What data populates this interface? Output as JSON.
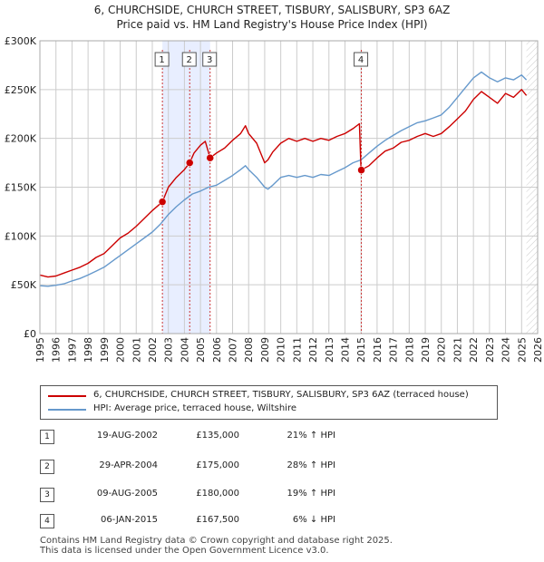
{
  "title_line1": "6, CHURCHSIDE, CHURCH STREET, TISBURY, SALISBURY, SP3 6AZ",
  "title_line2": "Price paid vs. HM Land Registry's House Price Index (HPI)",
  "colors": {
    "property": "#cc0000",
    "hpi": "#6699cc",
    "shade": "#e8eeff",
    "marker_line": "#cc3333",
    "grid": "#cccccc"
  },
  "chart_data": {
    "type": "line",
    "title": "Price paid vs. HM Land Registry's House Price Index (HPI)",
    "xlabel": "",
    "ylabel": "",
    "xlim": [
      1995,
      2026
    ],
    "ylim": [
      0,
      300000
    ],
    "x_ticks": [
      "1995",
      "1996",
      "1997",
      "1998",
      "1999",
      "2000",
      "2001",
      "2002",
      "2003",
      "2004",
      "2005",
      "2006",
      "2007",
      "2008",
      "2009",
      "2010",
      "2011",
      "2012",
      "2013",
      "2014",
      "2015",
      "2016",
      "2017",
      "2018",
      "2019",
      "2020",
      "2021",
      "2022",
      "2023",
      "2024",
      "2025",
      "2026"
    ],
    "y_ticks": [
      {
        "value": 0,
        "label": "£0"
      },
      {
        "value": 50000,
        "label": "£50K"
      },
      {
        "value": 100000,
        "label": "£100K"
      },
      {
        "value": 150000,
        "label": "£150K"
      },
      {
        "value": 200000,
        "label": "£200K"
      },
      {
        "value": 250000,
        "label": "£250K"
      },
      {
        "value": 300000,
        "label": "£300K"
      }
    ],
    "shaded_ranges": [
      [
        2002.63,
        2005.6
      ]
    ],
    "future_hatch_from": 2025.3,
    "series": [
      {
        "name": "6, CHURCHSIDE, CHURCH STREET, TISBURY, SALISBURY, SP3 6AZ (terraced house)",
        "color": "#cc0000",
        "x": [
          1995.0,
          1995.5,
          1996.0,
          1996.5,
          1997.0,
          1997.5,
          1998.0,
          1998.5,
          1999.0,
          1999.5,
          2000.0,
          2000.5,
          2001.0,
          2001.5,
          2002.0,
          2002.63,
          2003.0,
          2003.5,
          2004.0,
          2004.33,
          2004.6,
          2005.0,
          2005.3,
          2005.6,
          2006.0,
          2006.5,
          2007.0,
          2007.5,
          2007.8,
          2008.0,
          2008.5,
          2009.0,
          2009.2,
          2009.5,
          2010.0,
          2010.5,
          2011.0,
          2011.5,
          2012.0,
          2012.5,
          2013.0,
          2013.5,
          2014.0,
          2014.5,
          2014.9,
          2015.0,
          2015.5,
          2016.0,
          2016.5,
          2017.0,
          2017.5,
          2018.0,
          2018.5,
          2019.0,
          2019.5,
          2020.0,
          2020.5,
          2021.0,
          2021.5,
          2022.0,
          2022.5,
          2023.0,
          2023.5,
          2024.0,
          2024.5,
          2025.0,
          2025.3
        ],
        "y": [
          60000,
          58000,
          59000,
          62000,
          65000,
          68000,
          72000,
          78000,
          82000,
          90000,
          98000,
          103000,
          110000,
          118000,
          126000,
          135000,
          150000,
          160000,
          168000,
          175000,
          185000,
          193000,
          197000,
          180000,
          185000,
          190000,
          198000,
          205000,
          213000,
          205000,
          195000,
          175000,
          178000,
          186000,
          195000,
          200000,
          197000,
          200000,
          197000,
          200000,
          198000,
          202000,
          205000,
          210000,
          215000,
          167500,
          172000,
          180000,
          187000,
          190000,
          196000,
          198000,
          202000,
          205000,
          202000,
          205000,
          212000,
          220000,
          228000,
          240000,
          248000,
          242000,
          236000,
          246000,
          242000,
          250000,
          244000
        ]
      },
      {
        "name": "HPI: Average price, terraced house, Wiltshire",
        "color": "#6699cc",
        "x": [
          1995.0,
          1995.5,
          1996.0,
          1996.5,
          1997.0,
          1997.5,
          1998.0,
          1998.5,
          1999.0,
          1999.5,
          2000.0,
          2000.5,
          2001.0,
          2001.5,
          2002.0,
          2002.5,
          2003.0,
          2003.5,
          2004.0,
          2004.5,
          2005.0,
          2005.5,
          2006.0,
          2006.5,
          2007.0,
          2007.5,
          2007.8,
          2008.0,
          2008.5,
          2009.0,
          2009.2,
          2009.5,
          2010.0,
          2010.5,
          2011.0,
          2011.5,
          2012.0,
          2012.5,
          2013.0,
          2013.5,
          2014.0,
          2014.5,
          2015.0,
          2015.5,
          2016.0,
          2016.5,
          2017.0,
          2017.5,
          2018.0,
          2018.5,
          2019.0,
          2019.5,
          2020.0,
          2020.5,
          2021.0,
          2021.5,
          2022.0,
          2022.5,
          2023.0,
          2023.5,
          2024.0,
          2024.5,
          2025.0,
          2025.3
        ],
        "y": [
          49000,
          48500,
          49500,
          51000,
          54000,
          56500,
          60000,
          64000,
          68000,
          74000,
          80000,
          86000,
          92000,
          98000,
          104000,
          112000,
          122000,
          130000,
          137000,
          143000,
          146000,
          150000,
          152000,
          157000,
          162000,
          168000,
          172000,
          168000,
          160000,
          150000,
          148000,
          152000,
          160000,
          162000,
          160000,
          162000,
          160000,
          163000,
          162000,
          166000,
          170000,
          175000,
          178000,
          185000,
          192000,
          198000,
          203000,
          208000,
          212000,
          216000,
          218000,
          221000,
          224000,
          232000,
          242000,
          252000,
          262000,
          268000,
          262000,
          258000,
          262000,
          260000,
          265000,
          260000
        ]
      }
    ],
    "sales": [
      {
        "label": "1",
        "x": 2002.63,
        "y": 135000
      },
      {
        "label": "2",
        "x": 2004.33,
        "y": 175000
      },
      {
        "label": "3",
        "x": 2005.6,
        "y": 180000
      },
      {
        "label": "4",
        "x": 2015.02,
        "y": 167500
      }
    ]
  },
  "legend": {
    "property_label": "6, CHURCHSIDE, CHURCH STREET, TISBURY, SALISBURY, SP3 6AZ (terraced house)",
    "hpi_label": "HPI: Average price, terraced house, Wiltshire"
  },
  "transactions": [
    {
      "num": "1",
      "date": "19-AUG-2002",
      "price": "£135,000",
      "hpi": "21% ↑ HPI"
    },
    {
      "num": "2",
      "date": "29-APR-2004",
      "price": "£175,000",
      "hpi": "28% ↑ HPI"
    },
    {
      "num": "3",
      "date": "09-AUG-2005",
      "price": "£180,000",
      "hpi": "19% ↑ HPI"
    },
    {
      "num": "4",
      "date": "06-JAN-2015",
      "price": "£167,500",
      "hpi": "6% ↓ HPI"
    }
  ],
  "footer": {
    "line1": "Contains HM Land Registry data © Crown copyright and database right 2025.",
    "line2": "This data is licensed under the Open Government Licence v3.0."
  }
}
